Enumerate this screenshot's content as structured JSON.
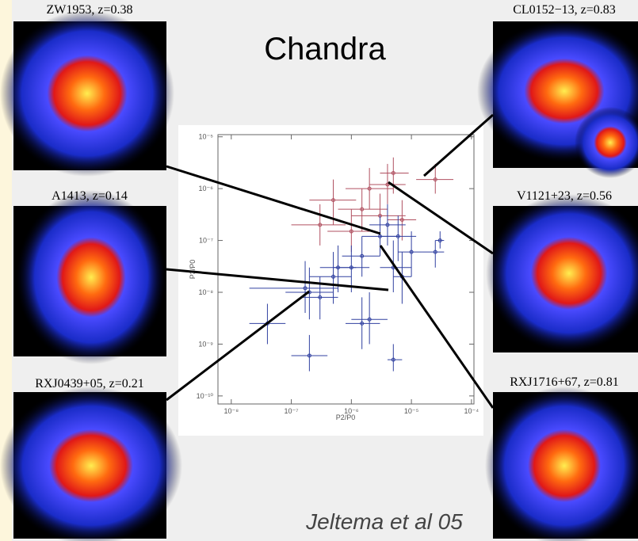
{
  "title": "Chandra",
  "credit": "Jeltema et al 05",
  "panels": [
    "ZW1953, z=0.38",
    "A1413, z=0.14",
    "RXJ0439+05, z=0.21",
    "CL0152−13, z=0.83",
    "V1121+23, z=0.56",
    "RXJ1716+67, z=0.81"
  ],
  "chart_data": {
    "type": "scatter",
    "x_label": "P2/P0",
    "y_label": "P3/P0",
    "xlog": true,
    "ylog": true,
    "xlim": [
      6e-09,
      0.00011
    ],
    "ylim": [
      7e-11,
      1.1e-05
    ],
    "xticks": [
      {
        "value": 1e-08,
        "label": "10⁻⁸"
      },
      {
        "value": 1e-07,
        "label": "10⁻⁷"
      },
      {
        "value": 1e-06,
        "label": "10⁻⁶"
      },
      {
        "value": 1e-05,
        "label": "10⁻⁵"
      },
      {
        "value": 0.0001,
        "label": "10⁻⁴"
      }
    ],
    "yticks": [
      {
        "value": 1e-10,
        "label": "10⁻¹⁰"
      },
      {
        "value": 1e-09,
        "label": "10⁻⁹"
      },
      {
        "value": 1e-08,
        "label": "10⁻⁸"
      },
      {
        "value": 1e-07,
        "label": "10⁻⁷"
      },
      {
        "value": 1e-06,
        "label": "10⁻⁶"
      },
      {
        "value": 1e-05,
        "label": "10⁻⁵"
      }
    ],
    "series": [
      {
        "color": "#b05060",
        "x": [
          2.5e-05,
          5e-06,
          3e-06,
          3e-07,
          5e-07,
          1.5e-06,
          1e-06,
          7e-06,
          2e-06,
          4e-06
        ],
        "values": [
          1.5e-06,
          2e-06,
          3e-07,
          2e-07,
          6e-07,
          4e-07,
          1.5e-07,
          2.5e-07,
          1e-06,
          1.2e-06
        ],
        "x_low": [
          1.2e-05,
          3e-06,
          1e-06,
          1e-07,
          2e-07,
          6e-07,
          4e-07,
          4e-06,
          8e-07,
          2e-06
        ],
        "x_high": [
          5e-05,
          9e-06,
          8e-06,
          8e-07,
          1.2e-06,
          4e-06,
          2.5e-06,
          1.2e-05,
          5e-06,
          8e-06
        ],
        "y_low": [
          8e-07,
          8e-07,
          1e-07,
          8e-08,
          2e-07,
          1.5e-07,
          6e-08,
          1e-07,
          4e-07,
          5e-07
        ],
        "y_high": [
          3e-06,
          4e-06,
          8e-07,
          5e-07,
          1.5e-06,
          1e-06,
          4e-07,
          6e-07,
          2.5e-06,
          3e-06
        ]
      },
      {
        "color": "#3040a0",
        "x": [
          1.7e-07,
          4e-08,
          2e-07,
          2e-07,
          5e-07,
          1.5e-06,
          2e-06,
          5e-06,
          5e-06,
          1e-05,
          2.5e-05,
          3e-05,
          1.5e-06,
          1e-06,
          3e-06,
          4e-06,
          6e-06,
          7e-06,
          3e-07,
          6e-07
        ],
        "values": [
          1.2e-08,
          2.5e-09,
          6e-10,
          1e-08,
          2e-08,
          2.5e-09,
          3e-09,
          5e-10,
          3e-08,
          6e-08,
          6e-08,
          1e-07,
          5e-08,
          3e-08,
          1.2e-07,
          2e-07,
          1.2e-07,
          2e-08,
          8e-09,
          3e-08
        ],
        "x_low": [
          2e-08,
          2e-08,
          1e-07,
          8e-08,
          2e-07,
          8e-07,
          1e-06,
          4e-06,
          3e-06,
          6e-06,
          1.5e-05,
          2.5e-05,
          7e-07,
          5e-07,
          1.5e-06,
          2e-06,
          3e-06,
          5e-06,
          1.5e-07,
          3e-07
        ],
        "x_high": [
          6e-07,
          8e-08,
          4e-07,
          5e-07,
          1e-06,
          3e-06,
          4e-06,
          7e-06,
          1e-05,
          1.5e-05,
          3.5e-05,
          3.5e-05,
          3e-06,
          2e-06,
          6e-06,
          8e-06,
          1.2e-05,
          1e-05,
          6e-07,
          1.2e-06
        ],
        "y_low": [
          4e-09,
          1e-09,
          3e-10,
          3e-09,
          6e-09,
          8e-10,
          1e-09,
          3e-10,
          1e-08,
          2e-08,
          3e-08,
          7e-08,
          2e-08,
          1e-08,
          5e-08,
          8e-08,
          4e-08,
          6e-09,
          3e-09,
          1e-08
        ],
        "y_high": [
          4e-08,
          6e-09,
          1.5e-09,
          3e-08,
          6e-08,
          8e-09,
          1e-08,
          1e-09,
          1e-07,
          1.5e-07,
          1e-07,
          1.5e-07,
          1.2e-07,
          8e-08,
          3e-07,
          5e-07,
          3e-07,
          6e-08,
          2e-08,
          8e-08
        ]
      }
    ]
  }
}
